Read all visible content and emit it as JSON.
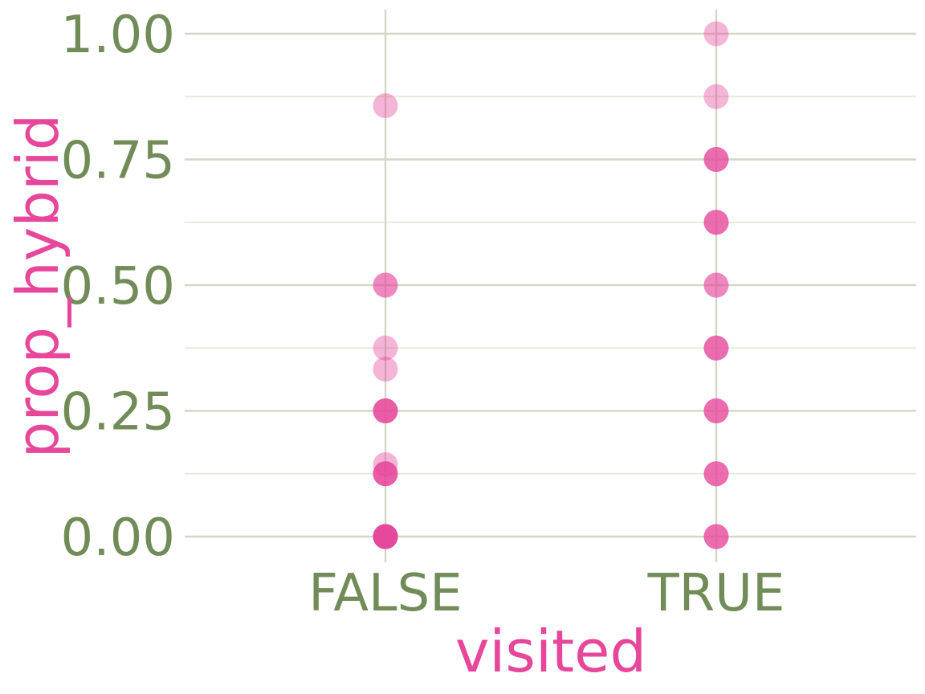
{
  "chart_data": {
    "type": "scatter",
    "title": "",
    "xlabel": "visited",
    "ylabel": "prop_hybrid",
    "categories": [
      "FALSE",
      "TRUE"
    ],
    "ylim": [
      0,
      1
    ],
    "y_ticks": [
      "0.00",
      "0.25",
      "0.50",
      "0.75",
      "1.00"
    ],
    "grid": true,
    "legend": "none",
    "colors": {
      "point": "#e7479a",
      "tick_label": "#718c58",
      "axis_title": "#e7479a",
      "grid_major": "#d4d7c8",
      "grid_minor": "#e8eadf"
    },
    "points": [
      {
        "x": "FALSE",
        "y": 0.857,
        "count": 1
      },
      {
        "x": "FALSE",
        "y": 0.5,
        "count": 2
      },
      {
        "x": "FALSE",
        "y": 0.375,
        "count": 1
      },
      {
        "x": "FALSE",
        "y": 0.333,
        "count": 1
      },
      {
        "x": "FALSE",
        "y": 0.25,
        "count": 4
      },
      {
        "x": "FALSE",
        "y": 0.143,
        "count": 1
      },
      {
        "x": "FALSE",
        "y": 0.125,
        "count": 4
      },
      {
        "x": "FALSE",
        "y": 0.0,
        "count": 8
      },
      {
        "x": "TRUE",
        "y": 1.0,
        "count": 1
      },
      {
        "x": "TRUE",
        "y": 0.875,
        "count": 1
      },
      {
        "x": "TRUE",
        "y": 0.75,
        "count": 3
      },
      {
        "x": "TRUE",
        "y": 0.625,
        "count": 3
      },
      {
        "x": "TRUE",
        "y": 0.5,
        "count": 2
      },
      {
        "x": "TRUE",
        "y": 0.375,
        "count": 3
      },
      {
        "x": "TRUE",
        "y": 0.25,
        "count": 3
      },
      {
        "x": "TRUE",
        "y": 0.125,
        "count": 3
      },
      {
        "x": "TRUE",
        "y": 0.0,
        "count": 3
      }
    ]
  }
}
